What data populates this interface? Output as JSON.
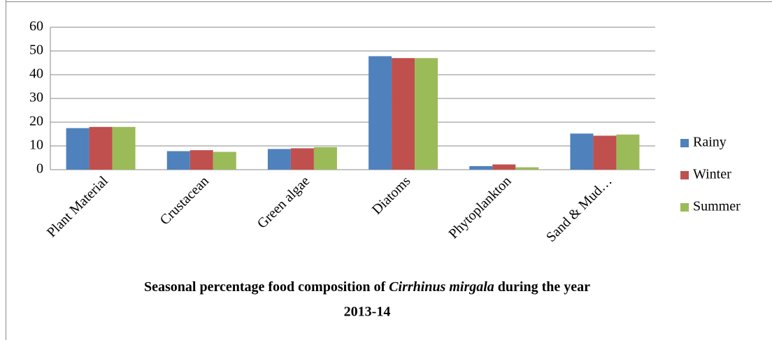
{
  "chart_data": {
    "type": "bar",
    "caption": [
      "Seasonal percentage food composition of ",
      "Cirrhinus mirgala",
      " during the year",
      "2013-14"
    ],
    "categories": [
      "Plant Material",
      "Crustacean",
      "Green algae",
      "Diatoms",
      "Phytoplankton",
      "Sand & Mud…"
    ],
    "series": [
      {
        "name": "Rainy",
        "color": "#4f81bd",
        "values": [
          17.5,
          7.8,
          8.7,
          47.8,
          1.5,
          15.2
        ]
      },
      {
        "name": "Winter",
        "color": "#c0504d",
        "values": [
          18,
          8.2,
          9,
          47,
          2.2,
          14.3
        ]
      },
      {
        "name": "Summer",
        "color": "#9bbb59",
        "values": [
          18,
          7.5,
          9.5,
          47,
          1,
          14.8
        ]
      }
    ],
    "ylim": [
      0,
      60
    ],
    "yticks": [
      0,
      10,
      20,
      30,
      40,
      50,
      60
    ],
    "grid": true,
    "legend": "right"
  }
}
